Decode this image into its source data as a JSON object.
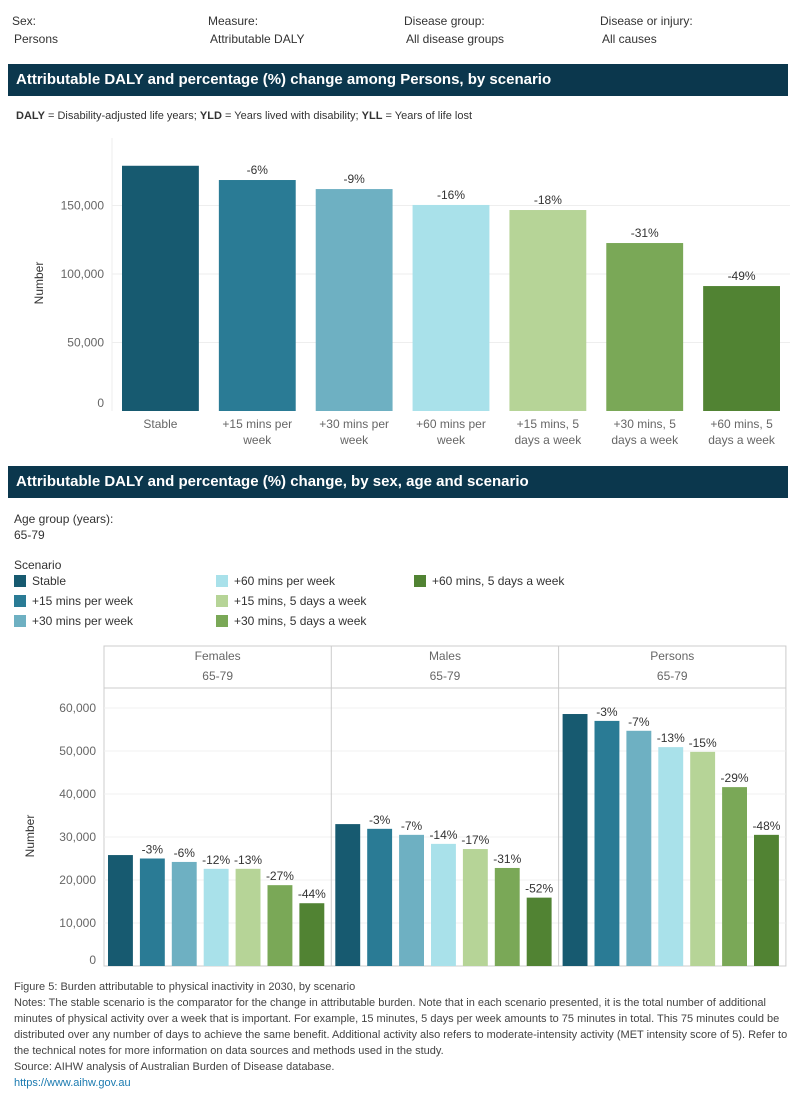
{
  "filters": [
    {
      "label": "Sex:",
      "value": "Persons"
    },
    {
      "label": "Measure:",
      "value": "Attributable DALY"
    },
    {
      "label": "Disease group:",
      "value": "All disease groups"
    },
    {
      "label": "Disease or injury:",
      "value": "All causes"
    }
  ],
  "section1": {
    "title": "Attributable DALY and percentage (%) change among Persons, by scenario",
    "abbr_parts": [
      "DALY",
      " = Disability-adjusted life years; ",
      "YLD",
      " = Years lived with disability; ",
      "YLL",
      " = Years of life lost"
    ]
  },
  "section2": {
    "title": "Attributable DALY and percentage (%) change, by sex, age and scenario",
    "age_label": "Age group (years):",
    "age_value": "65-79",
    "legend_title": "Scenario"
  },
  "colors": [
    "#175a70",
    "#2a7b95",
    "#6eb0c2",
    "#a9e1ea",
    "#b6d497",
    "#7aa857",
    "#518333"
  ],
  "chart_data": [
    {
      "type": "bar",
      "ylabel": "Number",
      "ylim": [
        0,
        190000
      ],
      "yticks": [
        0,
        50000,
        100000,
        150000
      ],
      "grid": true,
      "categories": [
        "Stable",
        "+15 mins per week",
        "+30 mins per week",
        "+60 mins per week",
        "+15 mins, 5 days a week",
        "+30 mins, 5 days a week",
        "+60 mins, 5 days a week"
      ],
      "category_lines": [
        [
          "Stable"
        ],
        [
          "+15 mins per",
          "week"
        ],
        [
          "+30 mins per",
          "week"
        ],
        [
          "+60 mins per",
          "week"
        ],
        [
          "+15 mins, 5",
          "days a week"
        ],
        [
          "+30 mins, 5",
          "days a week"
        ],
        [
          "+60 mins, 5",
          "days a week"
        ]
      ],
      "values": [
        179000,
        168600,
        162000,
        150400,
        146700,
        122600,
        91200
      ],
      "labels": [
        "",
        "-6%",
        "-9%",
        "-16%",
        "-18%",
        "-31%",
        "-49%"
      ]
    },
    {
      "type": "bar",
      "ylabel": "Number",
      "ylim": [
        0,
        65000
      ],
      "yticks": [
        0,
        10000,
        20000,
        30000,
        40000,
        50000,
        60000
      ],
      "grid": true,
      "legend": [
        "Stable",
        "+15 mins per week",
        "+30 mins per week",
        "+60 mins per week",
        "+15 mins, 5 days a week",
        "+30 mins, 5 days a week",
        "+60 mins, 5 days a week"
      ],
      "panels": [
        {
          "name": "Females",
          "age": "65-79",
          "values": [
            25800,
            25000,
            24200,
            22600,
            22600,
            18800,
            14600
          ],
          "labels": [
            "",
            "-3%",
            "-6%",
            "-12%",
            "-13%",
            "-27%",
            "-44%"
          ]
        },
        {
          "name": "Males",
          "age": "65-79",
          "values": [
            33000,
            31900,
            30500,
            28400,
            27200,
            22800,
            15900
          ],
          "labels": [
            "",
            "-3%",
            "-7%",
            "-14%",
            "-17%",
            "-31%",
            "-52%"
          ]
        },
        {
          "name": "Persons",
          "age": "65-79",
          "values": [
            58600,
            57000,
            54700,
            50900,
            49800,
            41600,
            30500
          ],
          "labels": [
            "",
            "-3%",
            "-7%",
            "-13%",
            "-15%",
            "-29%",
            "-48%"
          ]
        }
      ]
    }
  ],
  "footer": {
    "caption": "Figure 5: Burden attributable to physical inactivity in 2030, by scenario",
    "notes": "Notes: The stable scenario is the comparator for the change in attributable burden. Note that in each scenario presented, it is the total number of additional minutes of physical activity over a week that is important. For example, 15 minutes, 5 days per week amounts to 75 minutes in total. This 75 minutes could be distributed over any number of days to achieve the same benefit. Additional activity also refers to moderate-intensity activity (MET intensity score of 5).  Refer to the technical notes for more information on data sources and methods used in the study.",
    "source": "Source: AIHW analysis of Australian Burden of Disease database.",
    "link": "https://www.aihw.gov.au"
  }
}
